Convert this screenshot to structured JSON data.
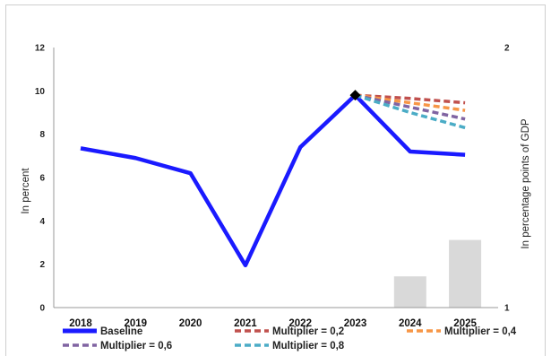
{
  "chart_data": {
    "type": "line",
    "x": [
      "2018",
      "2019",
      "2020",
      "2021",
      "2022",
      "2023",
      "2024",
      "2025"
    ],
    "ylabel": "In percent",
    "ylabel_right": "In percentage points of GDP",
    "ylim": [
      0,
      12
    ],
    "yticks": [
      "0",
      "2",
      "4",
      "6",
      "8",
      "10",
      "12"
    ],
    "ylim_right": [
      1,
      2
    ],
    "yticks_right": [
      "1",
      "2"
    ],
    "grid": false,
    "legend_position": "bottom",
    "series": [
      {
        "name": "Baseline",
        "color": "#1a1aff",
        "style": "solid",
        "x": [
          "2018",
          "2019",
          "2020",
          "2021",
          "2022",
          "2023",
          "2024",
          "2025"
        ],
        "values": [
          7.35,
          6.9,
          6.2,
          1.95,
          7.4,
          9.8,
          7.2,
          7.05
        ]
      },
      {
        "name": "Multiplier = 0,2",
        "color": "#c0504d",
        "style": "dashed",
        "x": [
          "2023",
          "2024",
          "2025"
        ],
        "values": [
          9.8,
          9.65,
          9.45
        ]
      },
      {
        "name": "Multiplier = 0,4",
        "color": "#f79646",
        "style": "dashed",
        "x": [
          "2023",
          "2024",
          "2025"
        ],
        "values": [
          9.8,
          9.45,
          9.1
        ]
      },
      {
        "name": "Multiplier = 0,6",
        "color": "#8064a2",
        "style": "dashed",
        "x": [
          "2023",
          "2024",
          "2025"
        ],
        "values": [
          9.8,
          9.25,
          8.7
        ]
      },
      {
        "name": "Multiplier = 0,8",
        "color": "#4bacc6",
        "style": "dashed",
        "x": [
          "2023",
          "2024",
          "2025"
        ],
        "values": [
          9.8,
          9.0,
          8.3
        ]
      }
    ],
    "bars_right_axis": {
      "color": "#d9d9d9",
      "x": [
        "2024",
        "2025"
      ],
      "values": [
        1.12,
        1.26
      ]
    },
    "marker": {
      "series": "Baseline",
      "x": "2023",
      "shape": "diamond",
      "color": "#000000"
    }
  }
}
